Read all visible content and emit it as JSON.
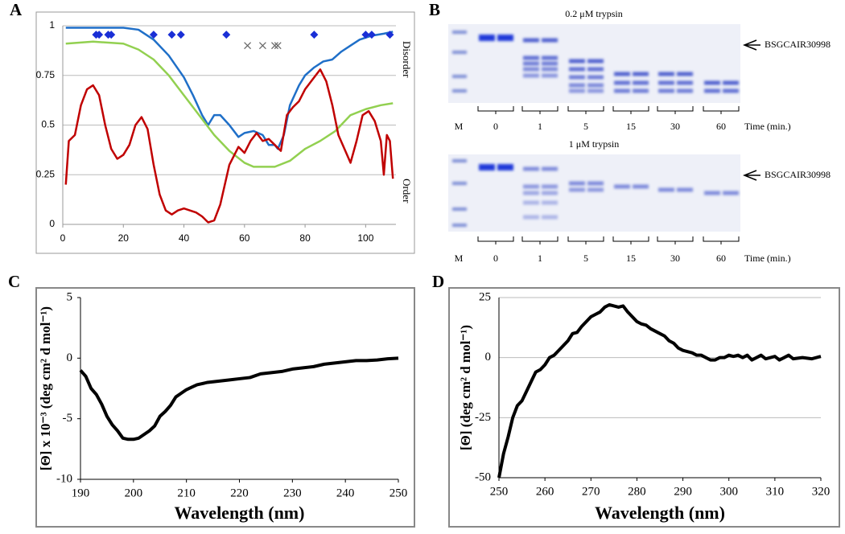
{
  "chart_data": [
    {
      "type": "line",
      "label": "A",
      "xlim": [
        0,
        110
      ],
      "xticks": [
        0,
        20,
        40,
        60,
        80,
        100
      ],
      "ylim": [
        0,
        1
      ],
      "yticks": [
        0,
        0.25,
        0.5,
        0.75,
        1
      ],
      "grid": true,
      "right_labels": [
        "Disorder",
        "Order"
      ],
      "series": [
        {
          "color": "#1f6fc8",
          "x": [
            1,
            10,
            20,
            25,
            30,
            35,
            40,
            43,
            46,
            48,
            50,
            52,
            55,
            58,
            60,
            63,
            66,
            68,
            70,
            71,
            73,
            75,
            78,
            80,
            83,
            86,
            89,
            92,
            95,
            98,
            102,
            106,
            109
          ],
          "values": [
            0.99,
            0.99,
            0.99,
            0.98,
            0.93,
            0.85,
            0.74,
            0.65,
            0.55,
            0.5,
            0.55,
            0.55,
            0.5,
            0.44,
            0.46,
            0.47,
            0.45,
            0.4,
            0.4,
            0.38,
            0.45,
            0.6,
            0.7,
            0.75,
            0.79,
            0.82,
            0.83,
            0.87,
            0.9,
            0.93,
            0.95,
            0.96,
            0.97
          ]
        },
        {
          "color": "#92d050",
          "x": [
            1,
            10,
            20,
            25,
            30,
            35,
            40,
            45,
            50,
            55,
            60,
            63,
            70,
            75,
            80,
            85,
            90,
            95,
            100,
            105,
            109
          ],
          "values": [
            0.91,
            0.92,
            0.91,
            0.88,
            0.83,
            0.75,
            0.65,
            0.55,
            0.45,
            0.37,
            0.31,
            0.29,
            0.29,
            0.32,
            0.38,
            0.42,
            0.47,
            0.55,
            0.58,
            0.6,
            0.61
          ]
        },
        {
          "color": "#c00000",
          "x": [
            1,
            2,
            4,
            6,
            8,
            10,
            12,
            14,
            16,
            18,
            20,
            22,
            24,
            26,
            28,
            30,
            32,
            34,
            36,
            38,
            40,
            42,
            44,
            46,
            48,
            50,
            52,
            55,
            58,
            60,
            62,
            64,
            66,
            68,
            70,
            72,
            74,
            76,
            78,
            80,
            82,
            85,
            87,
            89,
            91,
            93,
            95,
            97,
            99,
            101,
            103,
            105,
            106,
            107,
            108,
            109
          ],
          "values": [
            0.2,
            0.42,
            0.45,
            0.6,
            0.68,
            0.7,
            0.65,
            0.5,
            0.38,
            0.33,
            0.35,
            0.4,
            0.5,
            0.54,
            0.48,
            0.3,
            0.15,
            0.07,
            0.05,
            0.07,
            0.08,
            0.07,
            0.06,
            0.04,
            0.01,
            0.02,
            0.1,
            0.3,
            0.39,
            0.36,
            0.42,
            0.46,
            0.42,
            0.43,
            0.4,
            0.37,
            0.55,
            0.59,
            0.62,
            0.68,
            0.72,
            0.78,
            0.72,
            0.6,
            0.45,
            0.38,
            0.31,
            0.42,
            0.55,
            0.57,
            0.52,
            0.42,
            0.25,
            0.45,
            0.42,
            0.23
          ]
        },
        {
          "color": "#1a2fd6",
          "marker": "diamond",
          "x": [
            11,
            12,
            15,
            16,
            30,
            36,
            39,
            54,
            83,
            100,
            102,
            108
          ],
          "values": [
            0.955,
            0.955,
            0.955,
            0.955,
            0.955,
            0.955,
            0.955,
            0.955,
            0.955,
            0.955,
            0.955,
            0.955
          ]
        },
        {
          "color": "#666666",
          "marker": "x",
          "x": [
            61,
            66,
            70,
            71
          ],
          "values": [
            0.9,
            0.9,
            0.9,
            0.9
          ]
        }
      ]
    },
    {
      "type": "line",
      "label": "C",
      "xlim": [
        190,
        250
      ],
      "xticks": [
        190,
        200,
        210,
        220,
        230,
        240,
        250
      ],
      "ylim": [
        -10,
        5
      ],
      "yticks": [
        -10,
        -5,
        0,
        5
      ],
      "grid": false,
      "xlabel": "Wavelength (nm)",
      "ylabel": "[Θ] x 10⁻³ (deg cm² d mol⁻¹)",
      "series": [
        {
          "color": "#000000",
          "x": [
            190,
            191,
            192,
            193,
            194,
            195,
            196,
            197,
            198,
            199,
            200,
            201,
            202,
            203,
            204,
            205,
            206,
            207,
            208,
            209,
            210,
            211,
            212,
            214,
            216,
            218,
            220,
            222,
            224,
            226,
            228,
            230,
            232,
            234,
            236,
            238,
            240,
            242,
            244,
            246,
            248,
            250
          ],
          "values": [
            -1.0,
            -1.5,
            -2.5,
            -3.0,
            -3.8,
            -4.8,
            -5.5,
            -6.0,
            -6.6,
            -6.7,
            -6.7,
            -6.6,
            -6.3,
            -6.0,
            -5.6,
            -4.8,
            -4.4,
            -3.9,
            -3.2,
            -2.9,
            -2.6,
            -2.4,
            -2.2,
            -2.0,
            -1.9,
            -1.8,
            -1.7,
            -1.6,
            -1.3,
            -1.2,
            -1.1,
            -0.9,
            -0.8,
            -0.7,
            -0.5,
            -0.4,
            -0.3,
            -0.2,
            -0.2,
            -0.15,
            -0.05,
            0
          ]
        }
      ]
    },
    {
      "type": "line",
      "label": "D",
      "xlim": [
        250,
        320
      ],
      "xticks": [
        250,
        260,
        270,
        280,
        290,
        300,
        310,
        320
      ],
      "ylim": [
        -50,
        25
      ],
      "yticks": [
        -50,
        -25,
        0,
        25
      ],
      "grid": true,
      "xlabel": "Wavelength (nm)",
      "ylabel": "[Θ] (deg cm² d mol⁻¹)",
      "series": [
        {
          "color": "#000000",
          "x": [
            250,
            251,
            252,
            253,
            254,
            255,
            256,
            257,
            258,
            259,
            260,
            261,
            262,
            263,
            264,
            265,
            266,
            267,
            268,
            269,
            270,
            271,
            272,
            273,
            274,
            275,
            276,
            277,
            278,
            279,
            280,
            281,
            282,
            283,
            284,
            285,
            286,
            287,
            288,
            289,
            290,
            291,
            292,
            293,
            294,
            295,
            296,
            297,
            298,
            299,
            300,
            301,
            302,
            303,
            304,
            305,
            306,
            307,
            308,
            309,
            310,
            311,
            312,
            313,
            314,
            316,
            318,
            320
          ],
          "values": [
            -50,
            -40,
            -33,
            -25,
            -20,
            -18,
            -14,
            -10,
            -6,
            -5,
            -3,
            0,
            1,
            3,
            5,
            7,
            10,
            10.5,
            13,
            15,
            17,
            18,
            19,
            21,
            22,
            21.5,
            21,
            21.5,
            19,
            17,
            15,
            14,
            13.5,
            12,
            11,
            10,
            9,
            7,
            6,
            4,
            3,
            2.5,
            2,
            1,
            1,
            0,
            -1,
            -1,
            0,
            0,
            1,
            0.5,
            1,
            0,
            1,
            -1,
            0,
            1,
            -0.5,
            0,
            0.5,
            -1,
            0,
            1,
            -0.5,
            0,
            -0.5,
            0.5
          ]
        }
      ]
    }
  ],
  "gel_panel": {
    "label": "B",
    "gels": [
      {
        "title": "0.2 μM trypsin",
        "arrow_label": "BSGCAIR30998",
        "marker_label": "M",
        "times": [
          "0",
          "1",
          "5",
          "15",
          "30",
          "60"
        ],
        "time_label": "Time (min.)"
      },
      {
        "title": "1 μM trypsin",
        "arrow_label": "BSGCAIR30998",
        "marker_label": "M",
        "times": [
          "0",
          "1",
          "5",
          "15",
          "30",
          "60"
        ],
        "time_label": "Time (min.)"
      }
    ]
  }
}
